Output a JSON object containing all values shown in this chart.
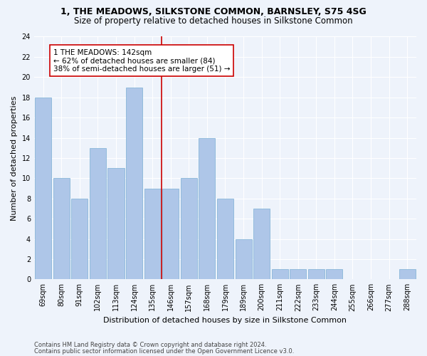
{
  "title": "1, THE MEADOWS, SILKSTONE COMMON, BARNSLEY, S75 4SG",
  "subtitle": "Size of property relative to detached houses in Silkstone Common",
  "xlabel": "Distribution of detached houses by size in Silkstone Common",
  "ylabel": "Number of detached properties",
  "categories": [
    "69sqm",
    "80sqm",
    "91sqm",
    "102sqm",
    "113sqm",
    "124sqm",
    "135sqm",
    "146sqm",
    "157sqm",
    "168sqm",
    "179sqm",
    "189sqm",
    "200sqm",
    "211sqm",
    "222sqm",
    "233sqm",
    "244sqm",
    "255sqm",
    "266sqm",
    "277sqm",
    "288sqm"
  ],
  "values": [
    18,
    10,
    8,
    13,
    11,
    19,
    9,
    9,
    10,
    14,
    8,
    4,
    7,
    1,
    1,
    1,
    1,
    0,
    0,
    0,
    1
  ],
  "bar_color": "#aec6e8",
  "bar_edge_color": "#7bafd4",
  "vline_x": 6.5,
  "vline_color": "#cc0000",
  "annotation_text": "1 THE MEADOWS: 142sqm\n← 62% of detached houses are smaller (84)\n38% of semi-detached houses are larger (51) →",
  "annotation_box_color": "#ffffff",
  "annotation_box_edge_color": "#cc0000",
  "ylim": [
    0,
    24
  ],
  "yticks": [
    0,
    2,
    4,
    6,
    8,
    10,
    12,
    14,
    16,
    18,
    20,
    22,
    24
  ],
  "footer1": "Contains HM Land Registry data © Crown copyright and database right 2024.",
  "footer2": "Contains public sector information licensed under the Open Government Licence v3.0.",
  "bg_color": "#eef3fb",
  "grid_color": "#ffffff",
  "title_fontsize": 9,
  "subtitle_fontsize": 8.5,
  "xlabel_fontsize": 8,
  "ylabel_fontsize": 8,
  "tick_fontsize": 7,
  "annotation_fontsize": 7.5,
  "footer_fontsize": 6
}
